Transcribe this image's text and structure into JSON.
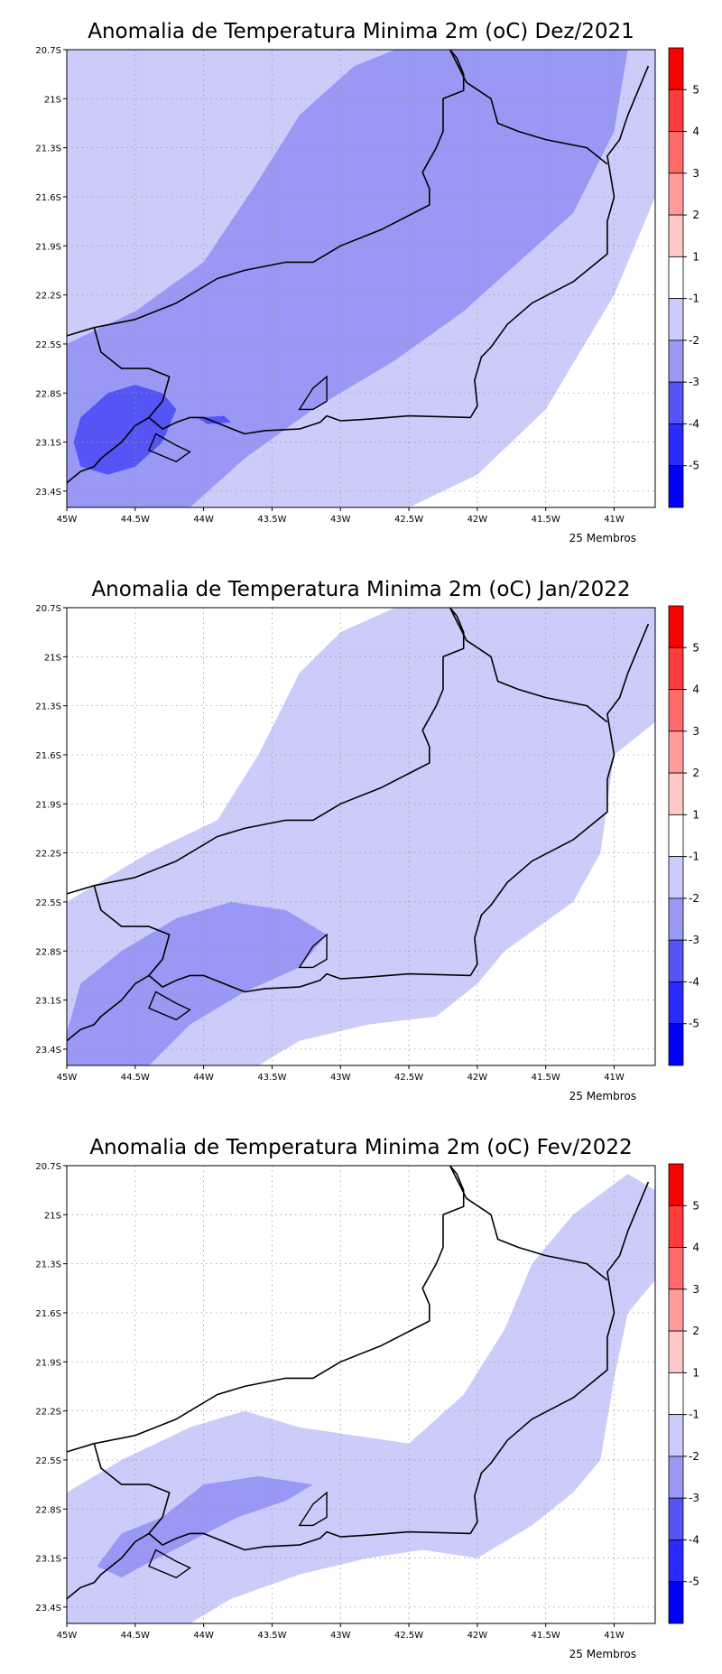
{
  "palette": {
    "lt5": "#0000ff",
    "n5_4": "#2a2aff",
    "n4_3": "#5555f5",
    "n3_2": "#9999f5",
    "n2_1": "#ccccfa",
    "n1_1": "#ffffff",
    "p1_2": "#ffc8c8",
    "p2_3": "#ff9b9b",
    "p3_4": "#ff6b6b",
    "p4_5": "#ff3c3c",
    "gt5": "#ff0000",
    "coast": "#000000",
    "grid": "#9a9a9a"
  },
  "colorbar": {
    "levels_top_to_bottom": [
      "5",
      "4",
      "3",
      "2",
      "1",
      "-1",
      "-2",
      "-3",
      "-4",
      "-5"
    ],
    "colors_top_to_bottom": [
      "#ff0000",
      "#ff3c3c",
      "#ff6b6b",
      "#ff9b9b",
      "#ffc8c8",
      "#ffffff",
      "#ccccfa",
      "#9999f5",
      "#5555f5",
      "#2a2aff",
      "#0000ff"
    ]
  },
  "axes": {
    "lon_ticks": [
      "45W",
      "44.5W",
      "44W",
      "43.5W",
      "43W",
      "42.5W",
      "42W",
      "41.5W",
      "41W"
    ],
    "lat_ticks": [
      "20.7S",
      "21S",
      "21.3S",
      "21.6S",
      "21.9S",
      "22.2S",
      "22.5S",
      "22.8S",
      "23.1S",
      "23.4S"
    ],
    "lon_range": [
      -45,
      -40.7
    ],
    "lat_range": [
      -23.5,
      -20.7
    ]
  },
  "panels": [
    {
      "title": "Anomalia de Temperatura Minima 2m (oC) Dez/2021",
      "footer": "25 Membros",
      "fields": [
        {
          "color_key": "n2_1",
          "polys": [
            [
              [
                -45,
                -20.7
              ],
              [
                -40.7,
                -20.7
              ],
              [
                -40.7,
                -23.5
              ],
              [
                -45,
                -23.5
              ]
            ]
          ]
        },
        {
          "color_key": "n1_1",
          "polys": [
            [
              [
                -40.7,
                -21.6
              ],
              [
                -41.0,
                -22.2
              ],
              [
                -41.5,
                -22.9
              ],
              [
                -42.0,
                -23.3
              ],
              [
                -42.5,
                -23.5
              ],
              [
                -40.7,
                -23.5
              ]
            ]
          ]
        },
        {
          "color_key": "n3_2",
          "polys": [
            [
              [
                -45,
                -22.5
              ],
              [
                -44.5,
                -22.3
              ],
              [
                -44.0,
                -22.0
              ],
              [
                -43.6,
                -21.5
              ],
              [
                -43.3,
                -21.1
              ],
              [
                -42.9,
                -20.8
              ],
              [
                -42.6,
                -20.7
              ],
              [
                -40.9,
                -20.7
              ],
              [
                -41.0,
                -21.2
              ],
              [
                -41.3,
                -21.7
              ],
              [
                -41.7,
                -22.0
              ],
              [
                -42.1,
                -22.3
              ],
              [
                -42.6,
                -22.6
              ],
              [
                -43.2,
                -22.9
              ],
              [
                -43.7,
                -23.2
              ],
              [
                -44.1,
                -23.5
              ],
              [
                -45,
                -23.5
              ]
            ]
          ]
        },
        {
          "color_key": "n2_1",
          "polys": [
            [
              [
                -45,
                -20.7
              ],
              [
                -42.6,
                -20.7
              ],
              [
                -42.9,
                -20.8
              ],
              [
                -43.3,
                -21.1
              ],
              [
                -43.6,
                -21.5
              ],
              [
                -44.0,
                -21.75
              ],
              [
                -44.6,
                -21.9
              ],
              [
                -45,
                -21.85
              ]
            ]
          ]
        },
        {
          "color_key": "n4_3",
          "polys": [
            [
              [
                -44.9,
                -22.95
              ],
              [
                -44.7,
                -22.8
              ],
              [
                -44.5,
                -22.75
              ],
              [
                -44.3,
                -22.8
              ],
              [
                -44.2,
                -22.9
              ],
              [
                -44.3,
                -23.1
              ],
              [
                -44.5,
                -23.25
              ],
              [
                -44.7,
                -23.3
              ],
              [
                -44.9,
                -23.25
              ],
              [
                -44.95,
                -23.1
              ]
            ],
            [
              [
                -44.05,
                -22.95
              ],
              [
                -43.85,
                -22.94
              ],
              [
                -43.8,
                -22.98
              ],
              [
                -43.97,
                -22.99
              ]
            ]
          ]
        }
      ]
    },
    {
      "title": "Anomalia de Temperatura Minima 2m (oC) Jan/2022",
      "footer": "25 Membros",
      "fields": [
        {
          "color_key": "n1_1",
          "polys": [
            [
              [
                -45,
                -20.7
              ],
              [
                -40.7,
                -20.7
              ],
              [
                -40.7,
                -23.5
              ],
              [
                -45,
                -23.5
              ]
            ]
          ]
        },
        {
          "color_key": "n2_1",
          "polys": [
            [
              [
                -45,
                -22.5
              ],
              [
                -44.4,
                -22.2
              ],
              [
                -43.9,
                -22.0
              ],
              [
                -43.6,
                -21.6
              ],
              [
                -43.3,
                -21.1
              ],
              [
                -43.0,
                -20.85
              ],
              [
                -42.6,
                -20.7
              ],
              [
                -40.7,
                -20.7
              ],
              [
                -40.7,
                -21.4
              ],
              [
                -41.0,
                -21.6
              ],
              [
                -41.1,
                -22.2
              ],
              [
                -41.3,
                -22.5
              ],
              [
                -41.8,
                -22.8
              ],
              [
                -42.0,
                -23.0
              ],
              [
                -42.3,
                -23.2
              ],
              [
                -42.8,
                -23.25
              ],
              [
                -43.3,
                -23.35
              ],
              [
                -43.6,
                -23.5
              ],
              [
                -45,
                -23.5
              ]
            ]
          ]
        },
        {
          "color_key": "n3_2",
          "polys": [
            [
              [
                -45,
                -23.3
              ],
              [
                -44.9,
                -23.0
              ],
              [
                -44.6,
                -22.8
              ],
              [
                -44.2,
                -22.6
              ],
              [
                -43.8,
                -22.5
              ],
              [
                -43.4,
                -22.55
              ],
              [
                -43.1,
                -22.7
              ],
              [
                -43.3,
                -22.9
              ],
              [
                -43.7,
                -23.05
              ],
              [
                -44.1,
                -23.25
              ],
              [
                -44.4,
                -23.5
              ],
              [
                -45,
                -23.5
              ]
            ]
          ]
        }
      ]
    },
    {
      "title": "Anomalia de Temperatura Minima 2m (oC) Fev/2022",
      "footer": "25 Membros",
      "fields": [
        {
          "color_key": "n1_1",
          "polys": [
            [
              [
                -45,
                -20.7
              ],
              [
                -40.7,
                -20.7
              ],
              [
                -40.7,
                -23.5
              ],
              [
                -45,
                -23.5
              ]
            ]
          ]
        },
        {
          "color_key": "n2_1",
          "polys": [
            [
              [
                -45,
                -23.5
              ],
              [
                -45,
                -22.7
              ],
              [
                -44.6,
                -22.5
              ],
              [
                -44.1,
                -22.3
              ],
              [
                -43.7,
                -22.2
              ],
              [
                -43.3,
                -22.3
              ],
              [
                -42.9,
                -22.35
              ],
              [
                -42.5,
                -22.4
              ],
              [
                -42.1,
                -22.1
              ],
              [
                -41.8,
                -21.7
              ],
              [
                -41.6,
                -21.3
              ],
              [
                -41.3,
                -21.0
              ],
              [
                -40.9,
                -20.75
              ],
              [
                -40.7,
                -20.85
              ],
              [
                -40.7,
                -21.4
              ],
              [
                -40.9,
                -21.6
              ],
              [
                -41.0,
                -22.0
              ],
              [
                -41.1,
                -22.5
              ],
              [
                -41.3,
                -22.7
              ],
              [
                -41.6,
                -22.9
              ],
              [
                -42.0,
                -23.1
              ],
              [
                -42.4,
                -23.05
              ],
              [
                -42.8,
                -23.1
              ],
              [
                -43.3,
                -23.2
              ],
              [
                -43.8,
                -23.35
              ],
              [
                -44.1,
                -23.5
              ]
            ]
          ]
        },
        {
          "color_key": "n3_2",
          "polys": [
            [
              [
                -44.78,
                -23.15
              ],
              [
                -44.6,
                -22.95
              ],
              [
                -44.3,
                -22.85
              ],
              [
                -44.0,
                -22.65
              ],
              [
                -43.6,
                -22.6
              ],
              [
                -43.2,
                -22.65
              ],
              [
                -43.4,
                -22.75
              ],
              [
                -43.75,
                -22.85
              ],
              [
                -44.1,
                -23.0
              ],
              [
                -44.45,
                -23.15
              ],
              [
                -44.6,
                -23.22
              ]
            ]
          ]
        }
      ]
    }
  ],
  "coastline": [
    [
      -45,
      -23.35
    ],
    [
      -44.9,
      -23.28
    ],
    [
      -44.8,
      -23.25
    ],
    [
      -44.75,
      -23.2
    ],
    [
      -44.6,
      -23.1
    ],
    [
      -44.5,
      -23.0
    ],
    [
      -44.4,
      -22.95
    ],
    [
      -44.3,
      -23.02
    ],
    [
      -44.2,
      -22.98
    ],
    [
      -44.1,
      -22.95
    ],
    [
      -44.0,
      -22.95
    ],
    [
      -43.85,
      -23.0
    ],
    [
      -43.7,
      -23.05
    ],
    [
      -43.55,
      -23.03
    ],
    [
      -43.3,
      -23.02
    ],
    [
      -43.15,
      -22.98
    ],
    [
      -43.1,
      -22.94
    ],
    [
      -43.0,
      -22.97
    ],
    [
      -42.8,
      -22.96
    ],
    [
      -42.5,
      -22.94
    ],
    [
      -42.05,
      -22.95
    ],
    [
      -42.0,
      -22.88
    ],
    [
      -42.02,
      -22.72
    ],
    [
      -41.97,
      -22.58
    ],
    [
      -41.9,
      -22.52
    ],
    [
      -41.78,
      -22.38
    ],
    [
      -41.6,
      -22.25
    ],
    [
      -41.3,
      -22.12
    ],
    [
      -41.05,
      -21.95
    ],
    [
      -41.05,
      -21.75
    ],
    [
      -41.0,
      -21.6
    ],
    [
      -41.05,
      -21.35
    ],
    [
      -40.96,
      -21.25
    ],
    [
      -40.9,
      -21.1
    ],
    [
      -40.8,
      -20.9
    ],
    [
      -40.75,
      -20.8
    ]
  ],
  "state_border": [
    [
      -45,
      -22.45
    ],
    [
      -44.8,
      -22.4
    ],
    [
      -44.5,
      -22.35
    ],
    [
      -44.2,
      -22.25
    ],
    [
      -43.9,
      -22.1
    ],
    [
      -43.7,
      -22.05
    ],
    [
      -43.4,
      -22.0
    ],
    [
      -43.2,
      -22.0
    ],
    [
      -43.0,
      -21.9
    ],
    [
      -42.7,
      -21.8
    ],
    [
      -42.35,
      -21.65
    ],
    [
      -42.35,
      -21.55
    ],
    [
      -42.4,
      -21.45
    ],
    [
      -42.3,
      -21.3
    ],
    [
      -42.25,
      -21.2
    ],
    [
      -42.25,
      -21.0
    ],
    [
      -42.1,
      -20.95
    ],
    [
      -42.1,
      -20.85
    ],
    [
      -42.15,
      -20.75
    ],
    [
      -42.2,
      -20.7
    ],
    [
      -42.08,
      -20.9
    ],
    [
      -41.9,
      -21.0
    ],
    [
      -41.85,
      -21.15
    ],
    [
      -41.7,
      -21.2
    ],
    [
      -41.5,
      -21.25
    ],
    [
      -41.2,
      -21.3
    ],
    [
      -41.05,
      -21.4
    ]
  ],
  "mg_sp_border": [
    [
      -44.8,
      -22.4
    ],
    [
      -44.75,
      -22.55
    ],
    [
      -44.6,
      -22.65
    ],
    [
      -44.4,
      -22.65
    ],
    [
      -44.25,
      -22.7
    ],
    [
      -44.3,
      -22.85
    ],
    [
      -44.4,
      -22.95
    ]
  ],
  "islands": [
    [
      [
        -44.35,
        -23.05
      ],
      [
        -44.2,
        -23.12
      ],
      [
        -44.1,
        -23.16
      ],
      [
        -44.2,
        -23.22
      ],
      [
        -44.4,
        -23.15
      ]
    ],
    [
      [
        -43.3,
        -22.9
      ],
      [
        -43.2,
        -22.77
      ],
      [
        -43.1,
        -22.7
      ],
      [
        -43.1,
        -22.85
      ],
      [
        -43.2,
        -22.9
      ]
    ]
  ]
}
